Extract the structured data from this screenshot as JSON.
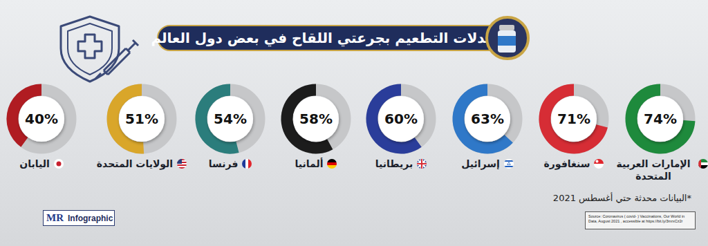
{
  "chart_data": {
    "type": "donut",
    "title": "معدلات التطعيم بجرعتي اللقاح في بعض دول العالم",
    "categories": [
      "الإمارات العربية المتحدة",
      "سنغافورة",
      "إسرائيل",
      "بريطانيا",
      "ألمانيا",
      "فرنسا",
      "الولايات المتحدة",
      "اليابان"
    ],
    "values": [
      74,
      71,
      63,
      60,
      58,
      54,
      51,
      40
    ],
    "value_labels": [
      "74%",
      "71%",
      "63%",
      "60%",
      "58%",
      "54%",
      "51%",
      "40%"
    ],
    "colors": [
      "#1e8a3c",
      "#d62d35",
      "#2f78c8",
      "#2a3d9a",
      "#1c1c1c",
      "#2b7d7c",
      "#d9a62a",
      "#b01c22"
    ],
    "ylim": [
      0,
      100
    ],
    "data_labels": true,
    "annotations": [
      "*البيانات محدثة حتي أغسطس 2021"
    ]
  },
  "source": "Source:  Coronavirus ( covid-  ) Vaccinations, Our World in Data, August 2021 , accessible at https://bit.ly/3mrxCz2r",
  "logo": {
    "mark": "MR",
    "text": "Infographic"
  }
}
